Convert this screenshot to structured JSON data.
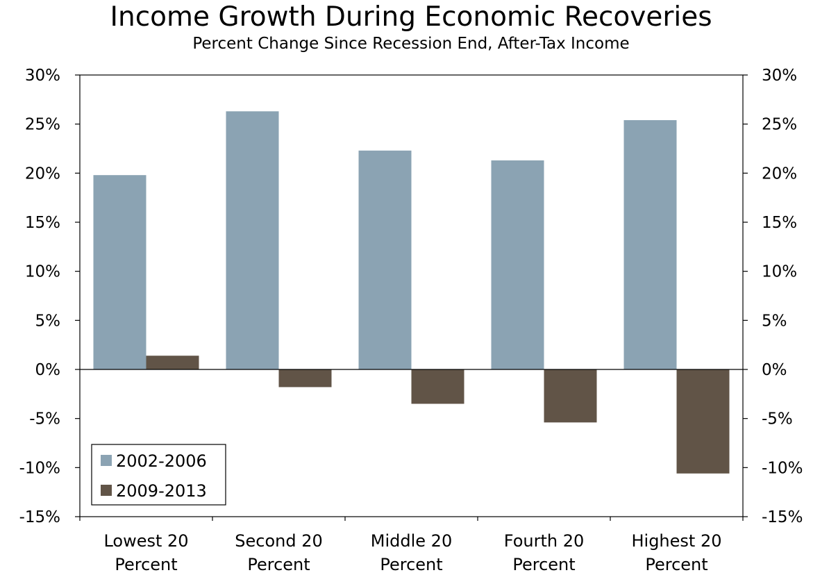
{
  "chart_data": {
    "type": "bar",
    "title": "Income Growth During Economic Recoveries",
    "subtitle": "Percent Change Since Recession End, After-Tax Income",
    "categories": [
      [
        "Lowest 20",
        "Percent"
      ],
      [
        "Second 20",
        "Percent"
      ],
      [
        "Middle 20",
        "Percent"
      ],
      [
        "Fourth 20",
        "Percent"
      ],
      [
        "Highest 20",
        "Percent"
      ]
    ],
    "series": [
      {
        "name": "2002-2006",
        "color": "#8ba3b3",
        "values": [
          19.8,
          26.3,
          22.3,
          21.3,
          25.4
        ]
      },
      {
        "name": "2009-2013",
        "color": "#615447",
        "values": [
          1.4,
          -1.8,
          -3.5,
          -5.4,
          -10.6
        ]
      }
    ],
    "ylim": [
      -15,
      30
    ],
    "ytick_step": 5,
    "ytick_labels": [
      "-15%",
      "-10%",
      "-5%",
      "0%",
      "5%",
      "10%",
      "15%",
      "20%",
      "25%",
      "30%"
    ],
    "secondary_y_axis": true,
    "grid": false,
    "legend_position": "bottom-left"
  }
}
